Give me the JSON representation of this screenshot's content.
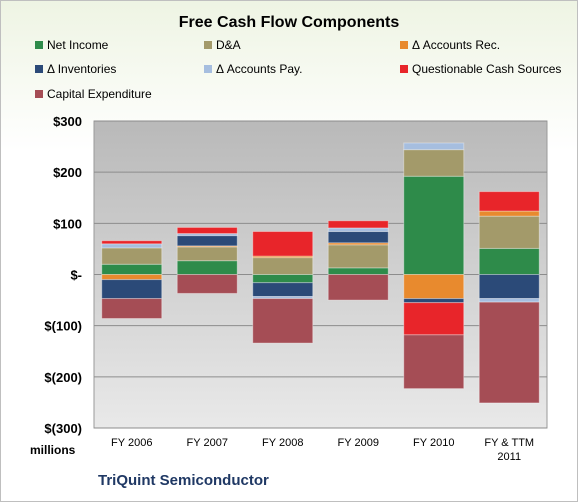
{
  "colors": {
    "net_income": "#2e8b4a",
    "da": "#a39a6a",
    "accounts_rec": "#e88a2e",
    "inventories": "#2b4a78",
    "accounts_pay": "#a6bedf",
    "questionable": "#e8252a",
    "capex": "#a54d55"
  },
  "chart_data": {
    "type": "bar",
    "title": "Free Cash Flow Components",
    "ylabel": "millions",
    "ylim": [
      -300,
      300
    ],
    "yticks": [
      300,
      200,
      100,
      0,
      -100,
      -200,
      -300
    ],
    "ytick_labels": [
      "$300",
      "$200",
      "$100",
      "$-",
      "$(100)",
      "$(200)",
      "$(300)"
    ],
    "categories": [
      "FY 2006",
      "FY 2007",
      "FY 2008",
      "FY 2009",
      "FY 2010",
      "FY & TTM 2011"
    ],
    "stacked": true,
    "legend_position": "top",
    "grid": true,
    "series": [
      {
        "name": "Net Income",
        "color_key": "net_income",
        "values": [
          20,
          27,
          -16,
          13,
          192,
          51
        ]
      },
      {
        "name": "D&A",
        "color_key": "da",
        "values": [
          32,
          27,
          33,
          45,
          52,
          63
        ]
      },
      {
        "name": "Δ Accounts Rec.",
        "color_key": "accounts_rec",
        "values": [
          -10,
          2,
          3,
          4,
          -47,
          10
        ]
      },
      {
        "name": "Δ Inventories",
        "color_key": "inventories",
        "values": [
          -37,
          20,
          -27,
          22,
          -8,
          -47
        ]
      },
      {
        "name": "Δ Accounts Pay.",
        "color_key": "accounts_pay",
        "values": [
          8,
          4,
          -4,
          7,
          13,
          -7
        ]
      },
      {
        "name": "Questionable Cash Sources",
        "color_key": "questionable",
        "values": [
          6,
          12,
          48,
          14,
          -63,
          38
        ]
      },
      {
        "name": "Capital Expenditure",
        "color_key": "capex",
        "values": [
          -39,
          -37,
          -87,
          -50,
          -105,
          -197
        ]
      }
    ]
  },
  "footer": {
    "company": "TriQuint Semiconductor"
  }
}
